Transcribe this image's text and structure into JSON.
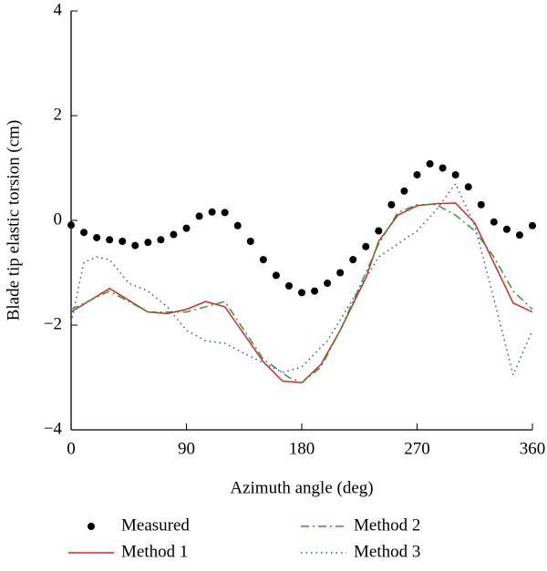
{
  "chart_data": {
    "type": "line",
    "xlabel": "Azimuth angle (deg)",
    "ylabel": "Blade tip elastic torsion (cm)",
    "xlim": [
      0,
      360
    ],
    "xticks": [
      0,
      90,
      180,
      270,
      360
    ],
    "ylim": [
      -4,
      4
    ],
    "yticks": [
      {
        "value": -4,
        "label": "−4"
      },
      {
        "value": -2,
        "label": "−2"
      },
      0,
      2,
      4
    ],
    "series": [
      {
        "name": "Measured",
        "color": "#000000",
        "style": "dots",
        "x": [
          0,
          10,
          20,
          30,
          40,
          50,
          60,
          70,
          80,
          90,
          100,
          110,
          120,
          130,
          140,
          150,
          160,
          170,
          180,
          190,
          200,
          210,
          220,
          230,
          240,
          250,
          260,
          270,
          280,
          290,
          300,
          310,
          320,
          330,
          340,
          350,
          360
        ],
        "values": [
          -0.09,
          -0.23,
          -0.33,
          -0.37,
          -0.4,
          -0.48,
          -0.42,
          -0.37,
          -0.27,
          -0.15,
          0.08,
          0.16,
          0.15,
          -0.1,
          -0.4,
          -0.75,
          -1.05,
          -1.25,
          -1.38,
          -1.35,
          -1.2,
          -1.0,
          -0.75,
          -0.5,
          -0.2,
          0.3,
          0.56,
          0.87,
          1.08,
          1.0,
          0.87,
          0.64,
          0.3,
          -0.03,
          -0.17,
          -0.28,
          -0.1
        ]
      },
      {
        "name": "Method 1",
        "color": "#d62728",
        "style": "solid",
        "x": [
          0,
          30,
          60,
          75,
          90,
          105,
          120,
          150,
          165,
          180,
          195,
          210,
          230,
          240,
          255,
          270,
          285,
          300,
          315,
          345,
          360
        ],
        "values": [
          -1.75,
          -1.3,
          -1.75,
          -1.78,
          -1.7,
          -1.55,
          -1.65,
          -2.7,
          -3.07,
          -3.1,
          -2.75,
          -2.1,
          -1.1,
          -0.4,
          0.1,
          0.28,
          0.32,
          0.33,
          -0.05,
          -1.58,
          -1.75
        ]
      },
      {
        "name": "Method 2",
        "color": "#2ca02c",
        "style": "dashdot",
        "x": [
          0,
          30,
          60,
          90,
          120,
          150,
          170,
          180,
          195,
          210,
          240,
          255,
          270,
          285,
          300,
          315,
          330,
          345,
          360
        ],
        "values": [
          -1.7,
          -1.35,
          -1.75,
          -1.75,
          -1.55,
          -2.65,
          -3.0,
          -3.1,
          -2.8,
          -2.1,
          -0.45,
          0.15,
          0.3,
          0.3,
          0.1,
          -0.2,
          -0.7,
          -1.35,
          -1.7
        ]
      },
      {
        "name": "Method 3",
        "color": "#3050c0",
        "style": "dotted",
        "x": [
          0,
          10,
          20,
          30,
          45,
          60,
          75,
          90,
          105,
          120,
          140,
          165,
          180,
          200,
          220,
          240,
          255,
          270,
          285,
          300,
          315,
          330,
          345,
          360
        ],
        "values": [
          -1.95,
          -0.8,
          -0.7,
          -0.75,
          -1.2,
          -1.35,
          -1.65,
          -2.1,
          -2.3,
          -2.35,
          -2.6,
          -2.9,
          -2.8,
          -2.3,
          -1.5,
          -0.7,
          -0.45,
          -0.2,
          0.2,
          0.7,
          -0.1,
          -1.5,
          -2.95,
          -2.1
        ]
      }
    ]
  }
}
